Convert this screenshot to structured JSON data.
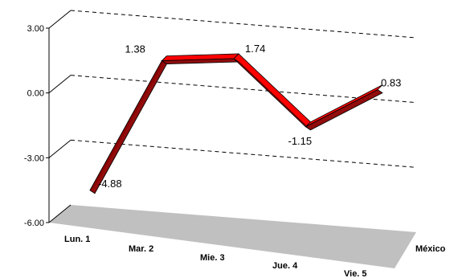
{
  "chart_data": {
    "type": "line",
    "style": "3d-ribbon",
    "categories": [
      "Lun. 1",
      "Mar. 2",
      "Mie. 3",
      "Jue. 4",
      "Vie. 5"
    ],
    "series": [
      {
        "name": "México",
        "values": [
          -4.88,
          1.38,
          1.74,
          -1.15,
          0.83
        ]
      }
    ],
    "data_labels": [
      "-4.88",
      "1.38",
      "1.74",
      "-1.15",
      "0.83"
    ],
    "y_ticks": [
      "3.00",
      "0.00",
      "-3.00",
      "-6.00"
    ],
    "y_tick_values": [
      3,
      0,
      -3,
      -6
    ],
    "ylim": [
      -6,
      3
    ],
    "grid": "dashed",
    "colors": {
      "ribbon_top": "#ff0000",
      "ribbon_side": "#8b0000",
      "floor": "#c0c0c0",
      "grid": "#000000"
    }
  }
}
